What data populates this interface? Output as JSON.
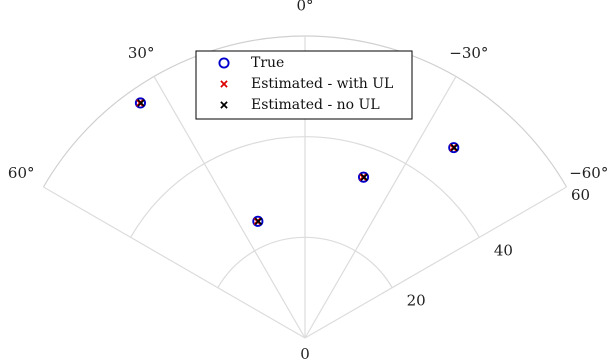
{
  "chart_data": {
    "type": "scatter",
    "coordinate_system": "polar-sector",
    "title": "",
    "theta_range_deg": [
      -60,
      60
    ],
    "r_range": [
      0,
      60
    ],
    "theta_ticks": [
      {
        "value": 60,
        "label": "60°"
      },
      {
        "value": 30,
        "label": "30°"
      },
      {
        "value": 0,
        "label": "0°"
      },
      {
        "value": -30,
        "label": "−30°"
      },
      {
        "value": -60,
        "label": "−60°"
      }
    ],
    "r_ticks": [
      {
        "value": 0,
        "label": "0"
      },
      {
        "value": 20,
        "label": "20"
      },
      {
        "value": 40,
        "label": "40"
      },
      {
        "value": 60,
        "label": "60"
      }
    ],
    "grid": true,
    "legend_placement": "top-center",
    "series": [
      {
        "name": "True",
        "marker": "circle-open",
        "color": "#0000cc",
        "points": [
          {
            "theta": 35,
            "r": 57
          },
          {
            "theta": 22,
            "r": 25
          },
          {
            "theta": -20,
            "r": 34
          },
          {
            "theta": -38,
            "r": 48
          }
        ]
      },
      {
        "name": "Estimated - with UL",
        "marker": "x",
        "color": "#dd0000",
        "points": [
          {
            "theta": 35,
            "r": 57
          },
          {
            "theta": 22,
            "r": 25
          },
          {
            "theta": -20,
            "r": 34
          },
          {
            "theta": -38,
            "r": 48
          }
        ]
      },
      {
        "name": "Estimated - no UL",
        "marker": "x",
        "color": "#000000",
        "points": [
          {
            "theta": 35,
            "r": 57
          },
          {
            "theta": 22,
            "r": 25
          },
          {
            "theta": -20,
            "r": 34
          },
          {
            "theta": -38,
            "r": 48
          }
        ]
      }
    ]
  }
}
